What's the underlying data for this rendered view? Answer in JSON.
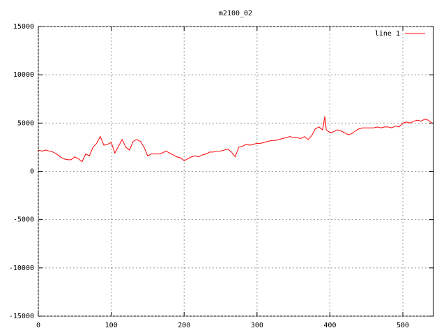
{
  "chart_data": {
    "type": "line",
    "title": "m2100_02",
    "x": [
      0,
      5,
      10,
      15,
      20,
      25,
      30,
      35,
      40,
      45,
      50,
      55,
      60,
      65,
      70,
      75,
      80,
      85,
      90,
      95,
      100,
      105,
      110,
      115,
      120,
      125,
      130,
      135,
      140,
      145,
      150,
      155,
      160,
      165,
      170,
      175,
      180,
      185,
      190,
      195,
      200,
      205,
      210,
      215,
      220,
      225,
      230,
      235,
      240,
      245,
      250,
      255,
      260,
      265,
      270,
      275,
      280,
      285,
      290,
      295,
      300,
      305,
      310,
      315,
      320,
      325,
      330,
      335,
      340,
      345,
      350,
      355,
      360,
      365,
      370,
      375,
      380,
      385,
      390,
      393,
      395,
      400,
      405,
      410,
      415,
      420,
      425,
      430,
      435,
      440,
      445,
      450,
      455,
      460,
      465,
      470,
      475,
      480,
      485,
      490,
      495,
      500,
      505,
      510,
      515,
      520,
      525,
      530,
      535,
      540
    ],
    "series": [
      {
        "name": "line 1",
        "color": "#ff0000",
        "values": [
          2200,
          2100,
          2200,
          2100,
          2000,
          1800,
          1500,
          1300,
          1200,
          1200,
          1500,
          1300,
          1000,
          1800,
          1600,
          2500,
          2900,
          3600,
          2700,
          2800,
          3000,
          1900,
          2600,
          3300,
          2500,
          2200,
          3100,
          3300,
          3100,
          2500,
          1600,
          1800,
          1800,
          1800,
          1900,
          2100,
          1900,
          1700,
          1500,
          1400,
          1100,
          1300,
          1500,
          1600,
          1500,
          1700,
          1800,
          2000,
          2000,
          2100,
          2100,
          2200,
          2300,
          2000,
          1500,
          2500,
          2600,
          2800,
          2700,
          2800,
          2900,
          2900,
          3000,
          3100,
          3200,
          3200,
          3300,
          3400,
          3500,
          3600,
          3500,
          3500,
          3400,
          3600,
          3300,
          3700,
          4400,
          4600,
          4300,
          5700,
          4300,
          4000,
          4100,
          4300,
          4200,
          4000,
          3800,
          3900,
          4200,
          4400,
          4500,
          4500,
          4500,
          4500,
          4600,
          4500,
          4600,
          4600,
          4500,
          4700,
          4600,
          5000,
          5100,
          5000,
          5200,
          5300,
          5200,
          5400,
          5300,
          5000
        ]
      }
    ],
    "xlim": [
      0,
      542
    ],
    "ylim": [
      -15000,
      15000
    ],
    "xticks": [
      0,
      100,
      200,
      300,
      400,
      500
    ],
    "yticks": [
      -15000,
      -10000,
      -5000,
      0,
      5000,
      10000,
      15000
    ],
    "grid": true,
    "legend": "top-right"
  }
}
